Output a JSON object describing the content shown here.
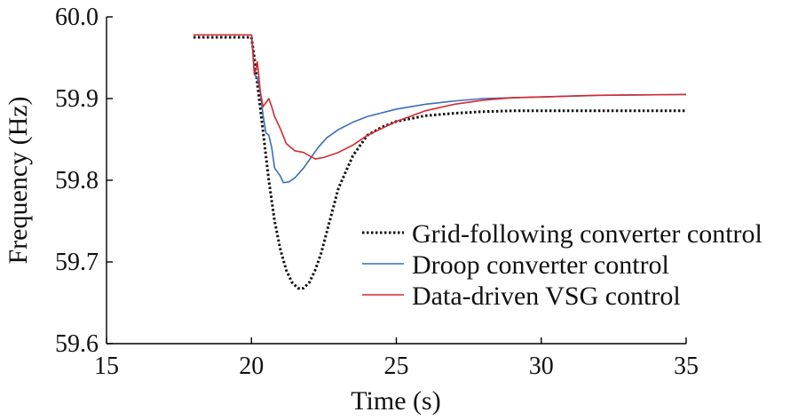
{
  "chart_data": {
    "type": "line",
    "title": "",
    "xlabel": "Time (s)",
    "ylabel": "Frequency (Hz)",
    "xlim": [
      15,
      35
    ],
    "ylim": [
      59.6,
      60.0
    ],
    "xticks": [
      15,
      20,
      25,
      30,
      35
    ],
    "yticks": [
      59.6,
      59.7,
      59.8,
      59.9,
      60.0
    ],
    "xtick_labels": [
      "15",
      "20",
      "25",
      "30",
      "35"
    ],
    "ytick_labels": [
      "59.6",
      "59.7",
      "59.8",
      "59.9",
      "60.0"
    ],
    "grid": false,
    "legend_position": "center-right",
    "series": [
      {
        "name": "Grid-following converter control",
        "color": "#111111",
        "style": "dotted",
        "x": [
          18.0,
          20.0,
          20.1,
          20.2,
          20.4,
          20.6,
          20.8,
          21.0,
          21.2,
          21.4,
          21.6,
          21.7,
          21.8,
          22.0,
          22.2,
          22.4,
          22.7,
          23.0,
          23.5,
          24.0,
          24.5,
          25.0,
          26.0,
          27.0,
          28.0,
          29.0,
          30.0,
          32.0,
          35.0
        ],
        "y": [
          59.975,
          59.975,
          59.95,
          59.92,
          59.86,
          59.8,
          59.75,
          59.715,
          59.69,
          59.675,
          59.668,
          59.667,
          59.668,
          59.675,
          59.69,
          59.71,
          59.75,
          59.79,
          59.83,
          59.855,
          59.865,
          59.872,
          59.879,
          59.882,
          59.884,
          59.885,
          59.885,
          59.885,
          59.885
        ]
      },
      {
        "name": "Droop converter control",
        "color": "#3a6fb5",
        "style": "solid",
        "x": [
          18.0,
          20.0,
          20.05,
          20.1,
          20.2,
          20.3,
          20.4,
          20.5,
          20.6,
          20.7,
          20.8,
          21.0,
          21.1,
          21.3,
          21.5,
          21.8,
          22.0,
          22.3,
          22.6,
          23.0,
          23.5,
          24.0,
          25.0,
          26.0,
          27.0,
          28.0,
          29.0,
          30.0,
          32.0,
          35.0
        ],
        "y": [
          59.978,
          59.978,
          59.955,
          59.93,
          59.925,
          59.91,
          59.88,
          59.858,
          59.855,
          59.84,
          59.815,
          59.805,
          59.797,
          59.798,
          59.803,
          59.815,
          59.825,
          59.84,
          59.852,
          59.862,
          59.871,
          59.878,
          59.887,
          59.893,
          59.897,
          59.9,
          59.901,
          59.902,
          59.904,
          59.905
        ]
      },
      {
        "name": "Data-driven VSG control",
        "color": "#d42a2f",
        "style": "solid",
        "x": [
          18.0,
          20.0,
          20.05,
          20.1,
          20.15,
          20.2,
          20.25,
          20.3,
          20.4,
          20.5,
          20.6,
          20.7,
          20.8,
          21.0,
          21.2,
          21.5,
          21.8,
          22.0,
          22.2,
          22.5,
          23.0,
          23.5,
          24.0,
          25.0,
          26.0,
          27.0,
          28.0,
          29.0,
          30.0,
          32.0,
          35.0
        ],
        "y": [
          59.978,
          59.978,
          59.96,
          59.93,
          59.935,
          59.945,
          59.93,
          59.91,
          59.89,
          59.895,
          59.9,
          59.89,
          59.878,
          59.863,
          59.845,
          59.836,
          59.834,
          59.83,
          59.826,
          59.828,
          59.834,
          59.843,
          59.855,
          59.872,
          59.885,
          59.893,
          59.898,
          59.901,
          59.902,
          59.904,
          59.905
        ]
      }
    ]
  }
}
